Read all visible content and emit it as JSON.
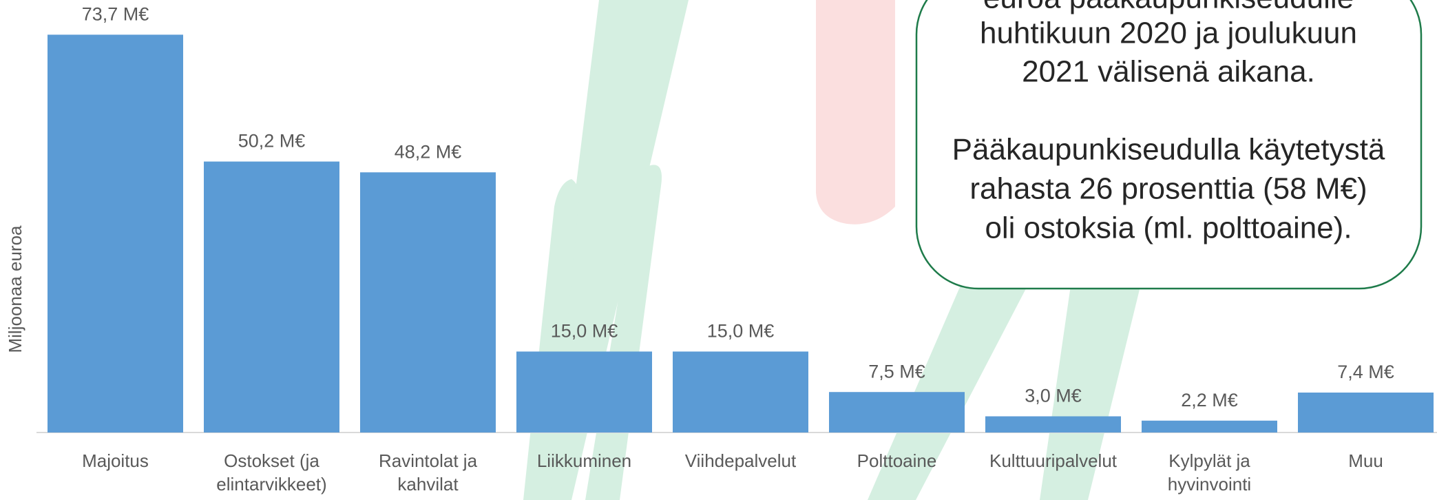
{
  "chart_data": {
    "type": "bar",
    "y_label": "Miljoonaa euroa",
    "categories": [
      "Majoitus",
      "Ostokset (ja elintarvikkeet)",
      "Ravintolat ja kahvilat",
      "Liikkuminen",
      "Viihdepalvelut",
      "Polttoaine",
      "Kulttuuripalvelut",
      "Kylpylät ja hyvinvointi",
      "Muu"
    ],
    "values": [
      73.7,
      50.2,
      48.2,
      15.0,
      15.0,
      7.5,
      3.0,
      2.2,
      7.4
    ],
    "value_labels": [
      "73,7 M€",
      "50,2 M€",
      "48,2 M€",
      "15,0 M€",
      "15,0 M€",
      "7,5 M€",
      "3,0 M€",
      "2,2 M€",
      "7,4 M€"
    ],
    "color": "#5b9bd5",
    "ylim": [
      0,
      80
    ],
    "annotation": [
      "euroa pääkaupunkiseudulle",
      "huhtikuun 2020 ja joulukuun",
      "2021 välisenä aikana.",
      "Pääkaupunkiseudulla käytetystä",
      "rahasta 26 prosenttia (58 M€)",
      "oli ostoksia (ml. polttoaine)."
    ]
  }
}
